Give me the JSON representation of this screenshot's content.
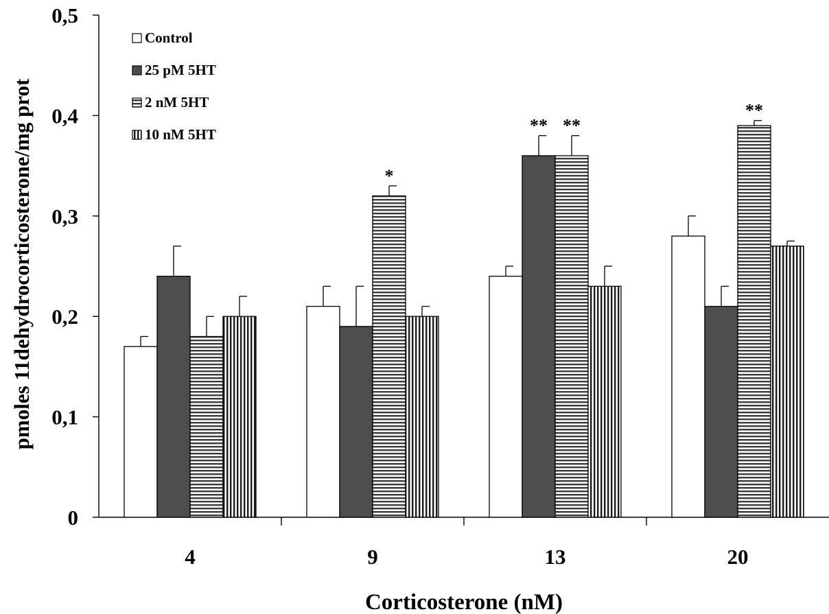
{
  "chart_data": {
    "type": "bar",
    "title": "",
    "xlabel": "Corticosterone (nM)",
    "ylabel": "pmoles 11dehydrocorticosterone/mg prot",
    "categories": [
      "4",
      "9",
      "13",
      "20"
    ],
    "ylim": [
      0,
      0.5
    ],
    "yticks": [
      {
        "value": 0,
        "label": "0"
      },
      {
        "value": 0.1,
        "label": "0,1"
      },
      {
        "value": 0.2,
        "label": "0,2"
      },
      {
        "value": 0.3,
        "label": "0,3"
      },
      {
        "value": 0.4,
        "label": "0,4"
      },
      {
        "value": 0.5,
        "label": "0,5"
      }
    ],
    "grid": false,
    "legend_position": "top-left",
    "series": [
      {
        "name": "Control",
        "pattern": "white",
        "values": [
          0.17,
          0.21,
          0.24,
          0.28
        ],
        "errors": [
          0.01,
          0.02,
          0.01,
          0.02
        ],
        "annotations": [
          "",
          "",
          "",
          ""
        ]
      },
      {
        "name": "25 pM 5HT",
        "pattern": "dark",
        "values": [
          0.24,
          0.19,
          0.36,
          0.21
        ],
        "errors": [
          0.03,
          0.04,
          0.02,
          0.02
        ],
        "annotations": [
          "",
          "",
          "**",
          ""
        ]
      },
      {
        "name": "2 nM 5HT",
        "pattern": "horizontal-stripes",
        "values": [
          0.18,
          0.32,
          0.36,
          0.39
        ],
        "errors": [
          0.02,
          0.01,
          0.02,
          0.005
        ],
        "annotations": [
          "",
          "*",
          "**",
          "**"
        ]
      },
      {
        "name": "10 nM 5HT",
        "pattern": "vertical-stripes",
        "values": [
          0.2,
          0.2,
          0.23,
          0.27
        ],
        "errors": [
          0.02,
          0.01,
          0.02,
          0.005
        ],
        "annotations": [
          "",
          "",
          "",
          ""
        ]
      }
    ],
    "colors": {
      "dark": "#4d4d4d",
      "stroke": "#000000",
      "background": "#ffffff"
    }
  }
}
